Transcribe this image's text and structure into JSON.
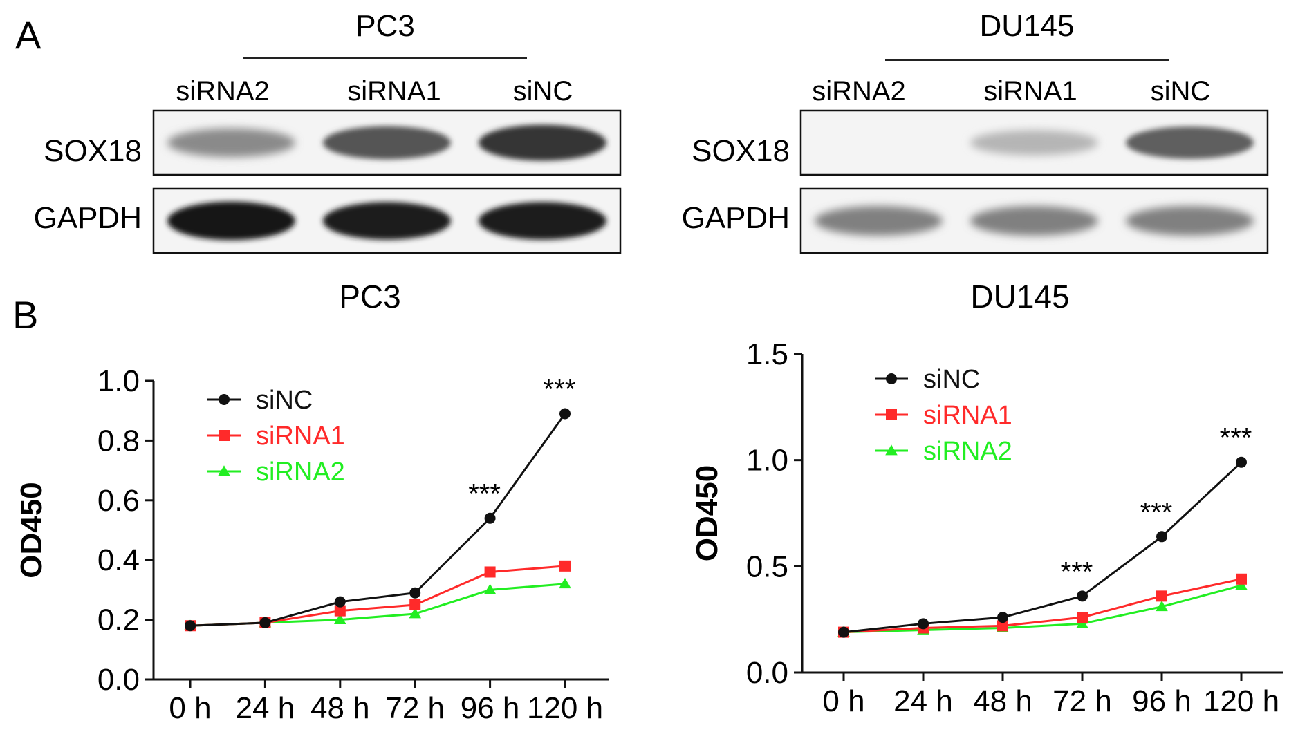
{
  "panel_a": {
    "label": "A",
    "blots": [
      {
        "cell_line": "PC3",
        "lanes": [
          "siRNA2",
          "siRNA1",
          "siNC"
        ],
        "rows": [
          {
            "name": "SOX18",
            "band_intensity": [
              0.45,
              0.7,
              0.85
            ]
          },
          {
            "name": "GAPDH",
            "band_intensity": [
              1.0,
              0.95,
              0.95
            ]
          }
        ]
      },
      {
        "cell_line": "DU145",
        "lanes": [
          "siRNA2",
          "siRNA1",
          "siNC"
        ],
        "rows": [
          {
            "name": "SOX18",
            "band_intensity": [
              0.0,
              0.25,
              0.65
            ]
          },
          {
            "name": "GAPDH",
            "band_intensity": [
              0.5,
              0.5,
              0.5
            ]
          }
        ]
      }
    ]
  },
  "panel_b": {
    "label": "B"
  },
  "chart_data": [
    {
      "type": "line",
      "title": "PC3",
      "ylabel": "OD450",
      "xlabel": "",
      "categories": [
        "0 h",
        "24 h",
        "48 h",
        "72 h",
        "96 h",
        "120 h"
      ],
      "ylim": [
        0,
        1.0
      ],
      "yticks": [
        "0.0",
        "0.2",
        "0.4",
        "0.6",
        "0.8",
        "1.0"
      ],
      "legend_position": "top-left",
      "series": [
        {
          "name": "siNC",
          "color": "#111111",
          "marker": "circle",
          "values": [
            0.18,
            0.19,
            0.26,
            0.29,
            0.54,
            0.89
          ]
        },
        {
          "name": "siRNA1",
          "color": "#ff2a2a",
          "marker": "square",
          "values": [
            0.18,
            0.19,
            0.23,
            0.25,
            0.36,
            0.38
          ]
        },
        {
          "name": "siRNA2",
          "color": "#22ee22",
          "marker": "triangle",
          "values": [
            0.18,
            0.19,
            0.2,
            0.22,
            0.3,
            0.32
          ]
        }
      ],
      "annotations": [
        {
          "category": "96 h",
          "y": 0.54,
          "text": "***"
        },
        {
          "category": "120 h",
          "y": 0.89,
          "text": "***"
        }
      ]
    },
    {
      "type": "line",
      "title": "DU145",
      "ylabel": "OD450",
      "xlabel": "",
      "categories": [
        "0 h",
        "24 h",
        "48 h",
        "72 h",
        "96 h",
        "120 h"
      ],
      "ylim": [
        0,
        1.5
      ],
      "yticks": [
        "0.0",
        "0.5",
        "1.0",
        "1.5"
      ],
      "legend_position": "top-left",
      "series": [
        {
          "name": "siNC",
          "color": "#111111",
          "marker": "circle",
          "values": [
            0.19,
            0.23,
            0.26,
            0.36,
            0.64,
            0.99
          ]
        },
        {
          "name": "siRNA1",
          "color": "#ff2a2a",
          "marker": "square",
          "values": [
            0.19,
            0.21,
            0.22,
            0.26,
            0.36,
            0.44
          ]
        },
        {
          "name": "siRNA2",
          "color": "#22ee22",
          "marker": "triangle",
          "values": [
            0.19,
            0.2,
            0.21,
            0.23,
            0.31,
            0.41
          ]
        }
      ],
      "annotations": [
        {
          "category": "72 h",
          "y": 0.36,
          "text": "***"
        },
        {
          "category": "96 h",
          "y": 0.64,
          "text": "***"
        },
        {
          "category": "120 h",
          "y": 0.99,
          "text": "***"
        }
      ]
    }
  ]
}
